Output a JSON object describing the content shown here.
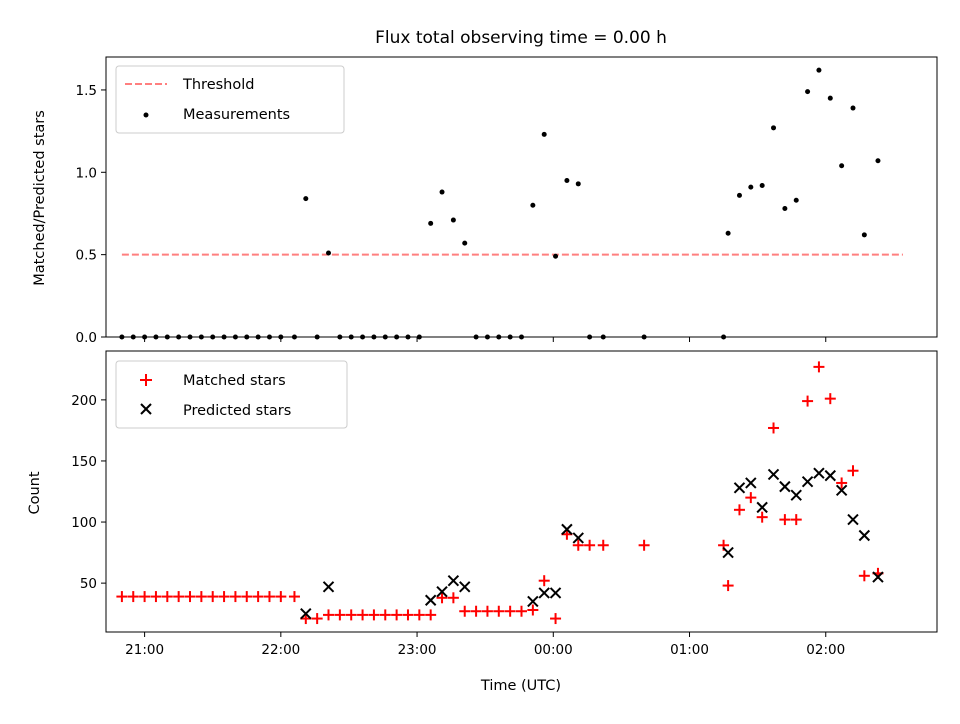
{
  "chart_data": [
    {
      "type": "scatter",
      "title": "Flux total observing time = 0.00 h",
      "xlabel": "",
      "ylabel": "Matched/Predicted stars",
      "ylim": [
        0,
        1.7
      ],
      "xlim": [
        "20:43",
        "02:49"
      ],
      "yticks": [
        "0.0",
        "0.5",
        "1.0",
        "1.5"
      ],
      "legend": {
        "placement": "upper-left"
      },
      "series": [
        {
          "name": "Threshold",
          "style": "dashed-line",
          "color": "#ff7f7f",
          "points": [
            [
              "20:50",
              0.5
            ],
            [
              "02:34",
              0.5
            ]
          ]
        },
        {
          "name": "Measurements",
          "style": "dot",
          "color": "#000000",
          "points": [
            [
              "20:50",
              0
            ],
            [
              "20:55",
              0
            ],
            [
              "21:00",
              0
            ],
            [
              "21:05",
              0
            ],
            [
              "21:10",
              0
            ],
            [
              "21:15",
              0
            ],
            [
              "21:20",
              0
            ],
            [
              "21:25",
              0
            ],
            [
              "21:30",
              0
            ],
            [
              "21:35",
              0
            ],
            [
              "21:40",
              0
            ],
            [
              "21:45",
              0
            ],
            [
              "21:50",
              0
            ],
            [
              "21:55",
              0
            ],
            [
              "22:00",
              0
            ],
            [
              "22:06",
              0
            ],
            [
              "22:11",
              0.84
            ],
            [
              "22:16",
              0
            ],
            [
              "22:21",
              0.51
            ],
            [
              "22:26",
              0
            ],
            [
              "22:31",
              0
            ],
            [
              "22:36",
              0
            ],
            [
              "22:41",
              0
            ],
            [
              "22:46",
              0
            ],
            [
              "22:51",
              0
            ],
            [
              "22:56",
              0
            ],
            [
              "23:01",
              0
            ],
            [
              "23:06",
              0.69
            ],
            [
              "23:11",
              0.88
            ],
            [
              "23:16",
              0.71
            ],
            [
              "23:21",
              0.57
            ],
            [
              "23:26",
              0
            ],
            [
              "23:31",
              0
            ],
            [
              "23:36",
              0
            ],
            [
              "23:41",
              0
            ],
            [
              "23:46",
              0
            ],
            [
              "23:51",
              0.8
            ],
            [
              "23:56",
              1.23
            ],
            [
              "00:01",
              0.49
            ],
            [
              "00:06",
              0.95
            ],
            [
              "00:11",
              0.93
            ],
            [
              "00:16",
              0
            ],
            [
              "00:22",
              0
            ],
            [
              "00:40",
              0
            ],
            [
              "01:15",
              0
            ],
            [
              "01:17",
              0.63
            ],
            [
              "01:22",
              0.86
            ],
            [
              "01:27",
              0.91
            ],
            [
              "01:32",
              0.92
            ],
            [
              "01:37",
              1.27
            ],
            [
              "01:42",
              0.78
            ],
            [
              "01:47",
              0.83
            ],
            [
              "01:52",
              1.49
            ],
            [
              "01:57",
              1.62
            ],
            [
              "02:02",
              1.45
            ],
            [
              "02:07",
              1.04
            ],
            [
              "02:12",
              1.39
            ],
            [
              "02:17",
              0.62
            ],
            [
              "02:23",
              1.07
            ]
          ]
        }
      ]
    },
    {
      "type": "scatter",
      "title": "",
      "xlabel": "Time (UTC)",
      "ylabel": "Count",
      "ylim": [
        10,
        240
      ],
      "xlim": [
        "20:43",
        "02:49"
      ],
      "yticks": [
        "50",
        "100",
        "150",
        "200"
      ],
      "xticks": [
        "21:00",
        "22:00",
        "23:00",
        "00:00",
        "01:00",
        "02:00"
      ],
      "legend": {
        "placement": "upper-left"
      },
      "series": [
        {
          "name": "Matched stars",
          "style": "plus",
          "color": "#ff0000",
          "points": [
            [
              "20:50",
              39
            ],
            [
              "20:55",
              39
            ],
            [
              "21:00",
              39
            ],
            [
              "21:05",
              39
            ],
            [
              "21:10",
              39
            ],
            [
              "21:15",
              39
            ],
            [
              "21:20",
              39
            ],
            [
              "21:25",
              39
            ],
            [
              "21:30",
              39
            ],
            [
              "21:35",
              39
            ],
            [
              "21:40",
              39
            ],
            [
              "21:45",
              39
            ],
            [
              "21:50",
              39
            ],
            [
              "21:55",
              39
            ],
            [
              "22:00",
              39
            ],
            [
              "22:06",
              39
            ],
            [
              "22:11",
              21
            ],
            [
              "22:16",
              21
            ],
            [
              "22:21",
              24
            ],
            [
              "22:26",
              24
            ],
            [
              "22:31",
              24
            ],
            [
              "22:36",
              24
            ],
            [
              "22:41",
              24
            ],
            [
              "22:46",
              24
            ],
            [
              "22:51",
              24
            ],
            [
              "22:56",
              24
            ],
            [
              "23:01",
              24
            ],
            [
              "23:06",
              24
            ],
            [
              "23:11",
              38
            ],
            [
              "23:16",
              38
            ],
            [
              "23:21",
              27
            ],
            [
              "23:26",
              27
            ],
            [
              "23:31",
              27
            ],
            [
              "23:36",
              27
            ],
            [
              "23:41",
              27
            ],
            [
              "23:46",
              27
            ],
            [
              "23:51",
              28
            ],
            [
              "23:56",
              52
            ],
            [
              "00:01",
              21
            ],
            [
              "00:06",
              90
            ],
            [
              "00:11",
              81
            ],
            [
              "00:16",
              81
            ],
            [
              "00:22",
              81
            ],
            [
              "00:40",
              81
            ],
            [
              "01:15",
              81
            ],
            [
              "01:17",
              48
            ],
            [
              "01:22",
              110
            ],
            [
              "01:27",
              120
            ],
            [
              "01:32",
              104
            ],
            [
              "01:37",
              177
            ],
            [
              "01:42",
              102
            ],
            [
              "01:47",
              102
            ],
            [
              "01:52",
              199
            ],
            [
              "01:57",
              227
            ],
            [
              "02:02",
              201
            ],
            [
              "02:07",
              132
            ],
            [
              "02:12",
              142
            ],
            [
              "02:17",
              56
            ],
            [
              "02:23",
              58
            ]
          ]
        },
        {
          "name": "Predicted stars",
          "style": "x",
          "color": "#000000",
          "points": [
            [
              "22:11",
              25
            ],
            [
              "22:21",
              47
            ],
            [
              "23:06",
              36
            ],
            [
              "23:11",
              43
            ],
            [
              "23:16",
              52
            ],
            [
              "23:21",
              47
            ],
            [
              "23:51",
              35
            ],
            [
              "23:56",
              42
            ],
            [
              "00:01",
              42
            ],
            [
              "00:06",
              94
            ],
            [
              "00:11",
              87
            ],
            [
              "01:17",
              75
            ],
            [
              "01:22",
              128
            ],
            [
              "01:27",
              132
            ],
            [
              "01:32",
              112
            ],
            [
              "01:37",
              139
            ],
            [
              "01:42",
              129
            ],
            [
              "01:47",
              122
            ],
            [
              "01:52",
              133
            ],
            [
              "01:57",
              140
            ],
            [
              "02:02",
              138
            ],
            [
              "02:07",
              126
            ],
            [
              "02:12",
              102
            ],
            [
              "02:17",
              89
            ],
            [
              "02:23",
              55
            ]
          ]
        }
      ]
    }
  ]
}
